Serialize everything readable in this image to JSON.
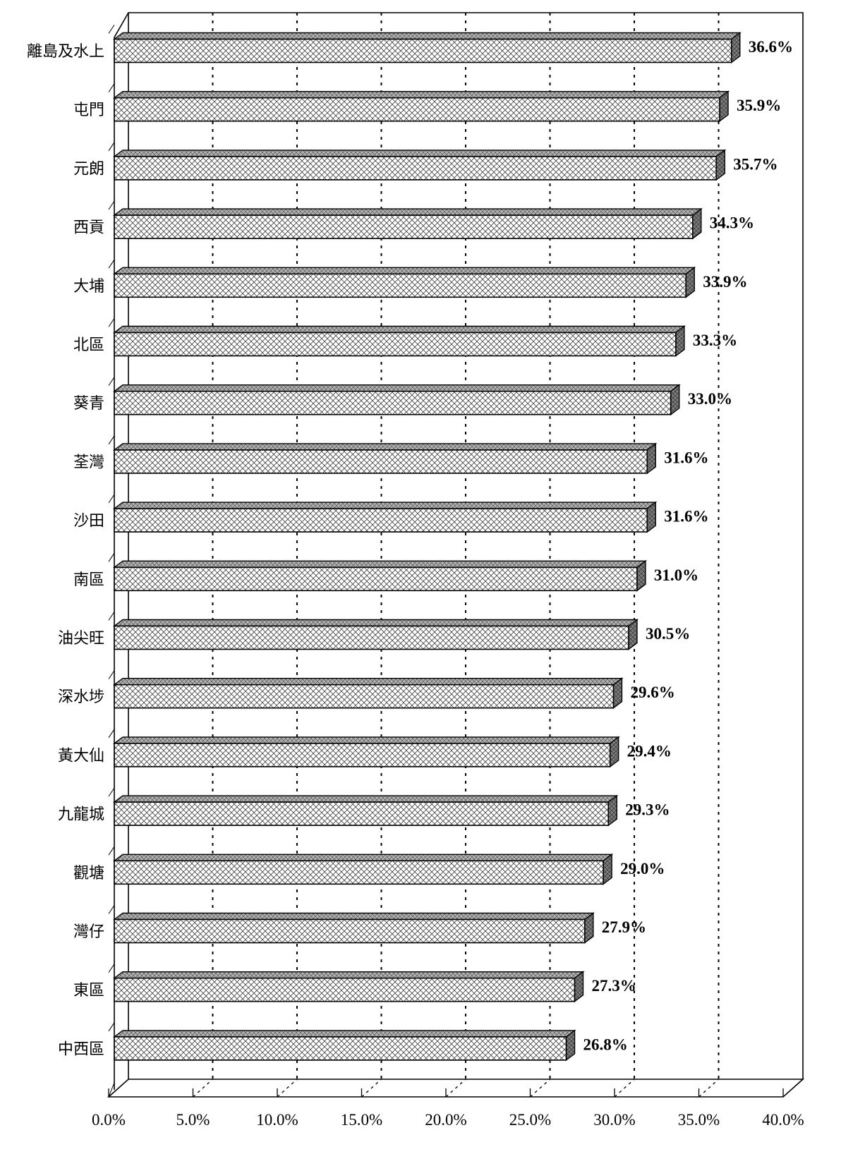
{
  "chart_data": {
    "type": "bar",
    "orientation": "horizontal",
    "categories": [
      "離島及水上",
      "屯門",
      "元朗",
      "西貢",
      "大埔",
      "北區",
      "葵青",
      "荃灣",
      "沙田",
      "南區",
      "油尖旺",
      "深水埗",
      "黃大仙",
      "九龍城",
      "觀塘",
      "灣仔",
      "東區",
      "中西區"
    ],
    "values": [
      36.6,
      35.9,
      35.7,
      34.3,
      33.9,
      33.3,
      33.0,
      31.6,
      31.6,
      31.0,
      30.5,
      29.6,
      29.4,
      29.3,
      29.0,
      27.9,
      27.3,
      26.8
    ],
    "value_labels": [
      "36.6%",
      "35.9%",
      "35.7%",
      "34.3%",
      "33.9%",
      "33.3%",
      "33.0%",
      "31.6%",
      "31.6%",
      "31.0%",
      "30.5%",
      "29.6%",
      "29.4%",
      "29.3%",
      "29.0%",
      "27.9%",
      "27.3%",
      "26.8%"
    ],
    "xlim": [
      0,
      40
    ],
    "x_ticks": [
      "0.0%",
      "5.0%",
      "10.0%",
      "15.0%",
      "20.0%",
      "25.0%",
      "30.0%",
      "35.0%",
      "40.0%"
    ],
    "grid": "dotted vertical",
    "style": "3d",
    "bar_fill": "cross-hatch",
    "colors": {
      "bar_face": "#ffffff",
      "hatch": "#555555",
      "bar_top": "#b0b0b0",
      "bar_side": "#7a7a7a",
      "outline": "#000000"
    }
  }
}
